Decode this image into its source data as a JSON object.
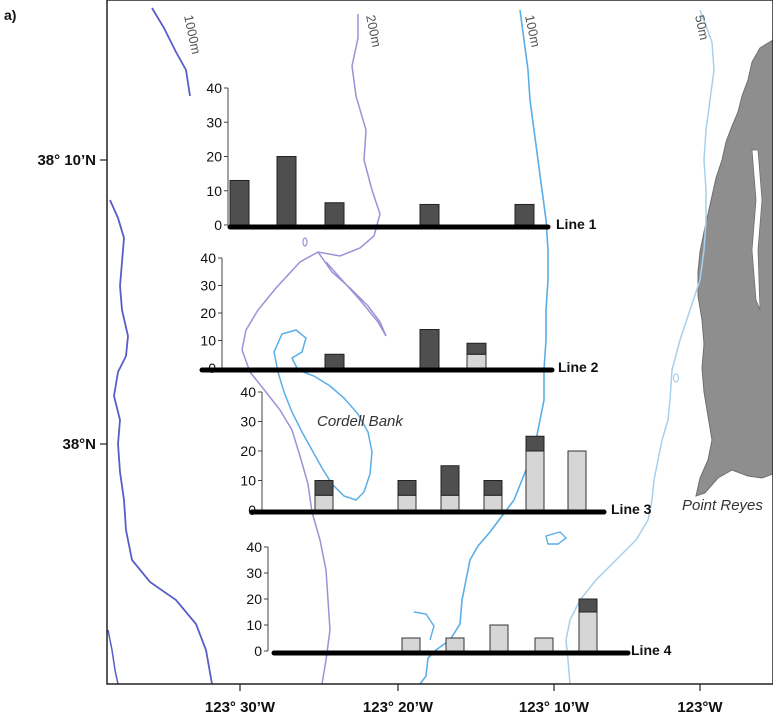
{
  "panel_label": "a)",
  "map": {
    "lat_labels": [
      {
        "key": "lat-38-10",
        "text": "38° 10’N"
      },
      {
        "key": "lat-38",
        "text": "38°N"
      }
    ],
    "lon_labels": [
      {
        "key": "lon-123-30",
        "text": "123° 30’W"
      },
      {
        "key": "lon-123-20",
        "text": "123° 20’W"
      },
      {
        "key": "lon-123-10",
        "text": "123° 10’W"
      },
      {
        "key": "lon-123",
        "text": "123°W"
      }
    ],
    "contour_labels": [
      "1000m",
      "200m",
      "100m",
      "50m"
    ],
    "place_labels": {
      "cordell_bank": "Cordell Bank",
      "point_reyes": "Point Reyes"
    },
    "colors": {
      "contour_1000": "#5a5cc8",
      "contour_200": "#9a92d6",
      "contour_100": "#5aaee8",
      "contour_50": "#a6d0ee",
      "land": "#8e8e8e",
      "bar_dark": "#4f4f4f",
      "bar_light": "#d6d6d6"
    }
  },
  "chart_data": [
    {
      "type": "bar",
      "stacked": true,
      "line_label": "Line 1",
      "ylim": [
        0,
        40
      ],
      "yticks": [
        "0",
        "10",
        "20",
        "30",
        "40"
      ],
      "bars": [
        {
          "dark": 13,
          "light": 0
        },
        {
          "dark": 20,
          "light": 0
        },
        {
          "dark": 6.5,
          "light": 0
        },
        {
          "dark": 6,
          "light": 0
        },
        {
          "dark": 6,
          "light": 0
        }
      ]
    },
    {
      "type": "bar",
      "stacked": true,
      "line_label": "Line 2",
      "ylim": [
        0,
        40
      ],
      "yticks": [
        "0",
        "10",
        "20",
        "30",
        "40"
      ],
      "bars": [
        {
          "dark": 5,
          "light": 0
        },
        {
          "dark": 14,
          "light": 0
        },
        {
          "dark": 4,
          "light": 5
        }
      ]
    },
    {
      "type": "bar",
      "stacked": true,
      "line_label": "Line 3",
      "ylim": [
        0,
        40
      ],
      "yticks": [
        "0",
        "10",
        "20",
        "30",
        "40"
      ],
      "bars": [
        {
          "dark": 5,
          "light": 5
        },
        {
          "dark": 5,
          "light": 5
        },
        {
          "dark": 10,
          "light": 5
        },
        {
          "dark": 5,
          "light": 5
        },
        {
          "dark": 5,
          "light": 20
        },
        {
          "dark": 0,
          "light": 20
        }
      ]
    },
    {
      "type": "bar",
      "stacked": true,
      "line_label": "Line 4",
      "ylim": [
        0,
        40
      ],
      "yticks": [
        "0",
        "10",
        "20",
        "30",
        "40"
      ],
      "bars": [
        {
          "dark": 0,
          "light": 5
        },
        {
          "dark": 0,
          "light": 5
        },
        {
          "dark": 0,
          "light": 10
        },
        {
          "dark": 0,
          "light": 5
        },
        {
          "dark": 5,
          "light": 15
        }
      ]
    }
  ]
}
